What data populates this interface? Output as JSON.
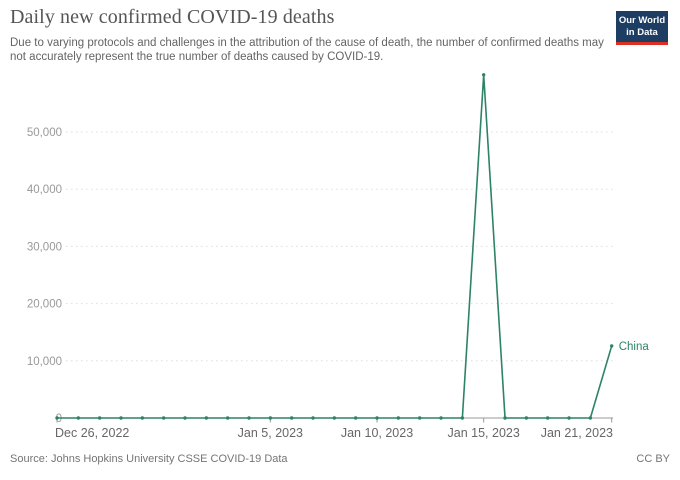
{
  "header": {
    "title": "Daily new confirmed COVID-19 deaths",
    "subtitle_line1": "Due to varying protocols and challenges in the attribution of the cause of death, the number of confirmed deaths may",
    "subtitle_line2": "not accurately represent the true number of deaths caused by COVID-19.",
    "logo": {
      "line1": "Our World",
      "line2": "in Data",
      "background_color": "#1d3d63",
      "accent_color": "#dc3022"
    }
  },
  "chart_data": {
    "type": "line",
    "title": "Daily new confirmed COVID-19 deaths",
    "xlabel": "",
    "ylabel": "",
    "grid": "horizontal-dotted",
    "legend_position": "end-of-line",
    "ylim": [
      0,
      60000
    ],
    "y_ticks": [
      0,
      10000,
      20000,
      30000,
      40000,
      50000
    ],
    "y_tick_labels": [
      "0",
      "10,000",
      "20,000",
      "30,000",
      "40,000",
      "50,000"
    ],
    "x_tick_labels": [
      "Dec 26, 2022",
      "Jan 5, 2023",
      "Jan 10, 2023",
      "Jan 15, 2023",
      "Jan 21, 2023"
    ],
    "x": [
      "Dec 26, 2022",
      "Dec 27, 2022",
      "Dec 28, 2022",
      "Dec 29, 2022",
      "Dec 30, 2022",
      "Dec 31, 2022",
      "Jan 1, 2023",
      "Jan 2, 2023",
      "Jan 3, 2023",
      "Jan 4, 2023",
      "Jan 5, 2023",
      "Jan 6, 2023",
      "Jan 7, 2023",
      "Jan 8, 2023",
      "Jan 9, 2023",
      "Jan 10, 2023",
      "Jan 11, 2023",
      "Jan 12, 2023",
      "Jan 13, 2023",
      "Jan 14, 2023",
      "Jan 15, 2023",
      "Jan 16, 2023",
      "Jan 17, 2023",
      "Jan 18, 2023",
      "Jan 19, 2023",
      "Jan 20, 2023",
      "Jan 21, 2023"
    ],
    "series": [
      {
        "name": "China",
        "color": "#2C8465",
        "values": [
          0,
          0,
          0,
          0,
          0,
          0,
          0,
          0,
          0,
          0,
          0,
          0,
          0,
          0,
          0,
          0,
          0,
          0,
          0,
          0,
          60000,
          0,
          0,
          0,
          0,
          0,
          12600
        ]
      }
    ]
  },
  "footer": {
    "source": "Source: Johns Hopkins University CSSE COVID-19 Data",
    "license": "CC BY"
  },
  "colors": {
    "axis": "#999999",
    "gridline": "#dddddd",
    "y_tick_label": "#999999",
    "x_tick_label": "#666666",
    "series_china": "#2C8465"
  }
}
